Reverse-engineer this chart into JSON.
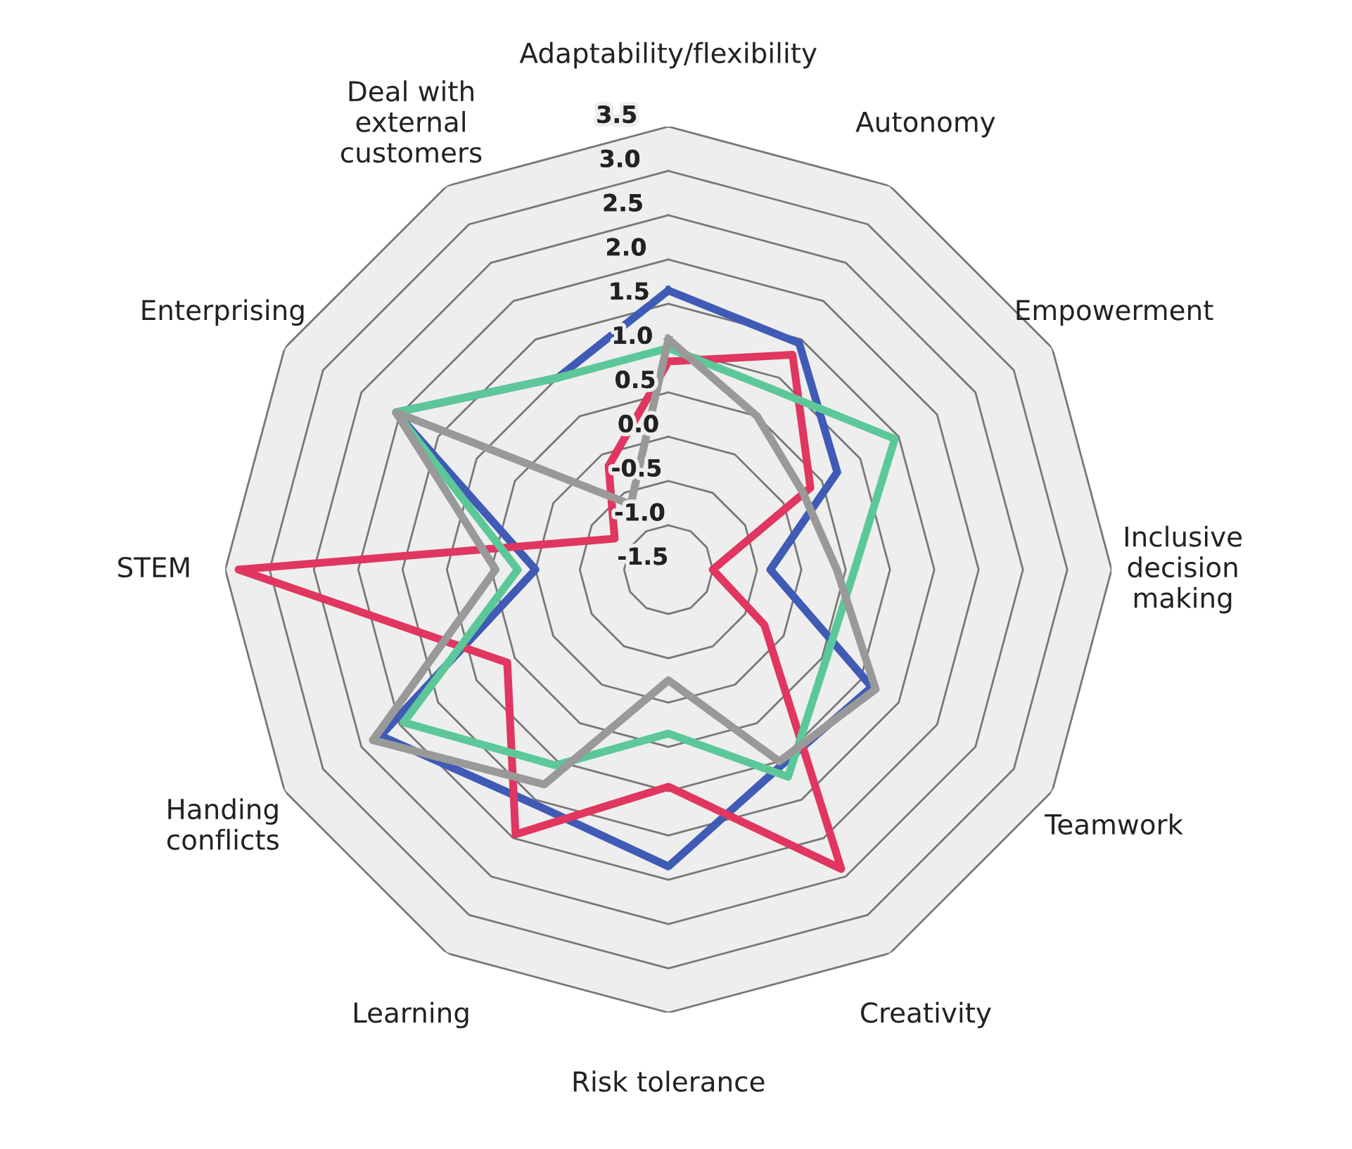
{
  "chart_data": {
    "type": "radar",
    "categories": [
      "Adaptability/flexibility",
      "Autonomy",
      "Empowerment",
      "Inclusive\ndecision\nmaking",
      "Teamwork",
      "Creativity",
      "Risk tolerance",
      "Learning",
      "Handing\nconflicts",
      "STEM",
      "Enterprising",
      "Deal with\nexternal\ncustomers"
    ],
    "ylim": [
      -1.5,
      3.5
    ],
    "yticks": [
      -1.5,
      {
        "value": -1,
        "label": "-1.0"
      },
      -0.5,
      {
        "value": 0,
        "label": "0.0"
      },
      0.5,
      {
        "value": 1,
        "label": "1.0"
      },
      1.5,
      {
        "value": 2,
        "label": "2.0"
      },
      2.5,
      {
        "value": 3,
        "label": "3.0"
      },
      3.5
    ],
    "grid": true,
    "series": [
      {
        "color": "#3f5bb5",
        "values": [
          1.65,
          1.45,
          0.7,
          -0.35,
          1.15,
          1.05,
          1.85,
          1.55,
          2.25,
          0.0,
          2.05,
          1.0
        ]
      },
      {
        "color": "#e0365f",
        "values": [
          0.85,
          1.3,
          0.35,
          -1.0,
          -0.25,
          2.4,
          0.95,
          1.95,
          0.6,
          3.35,
          -0.8,
          -0.15
        ]
      },
      {
        "color": "#5cc89a",
        "values": [
          1.0,
          0.85,
          1.45,
          0.6,
          0.55,
          1.2,
          0.35,
          1.05,
          1.95,
          0.2,
          2.05,
          1.0
        ]
      },
      {
        "color": "#999999",
        "values": [
          1.1,
          0.5,
          0.25,
          0.4,
          1.2,
          1.0,
          -0.25,
          1.3,
          2.35,
          0.45,
          2.05,
          -0.65
        ]
      }
    ]
  }
}
